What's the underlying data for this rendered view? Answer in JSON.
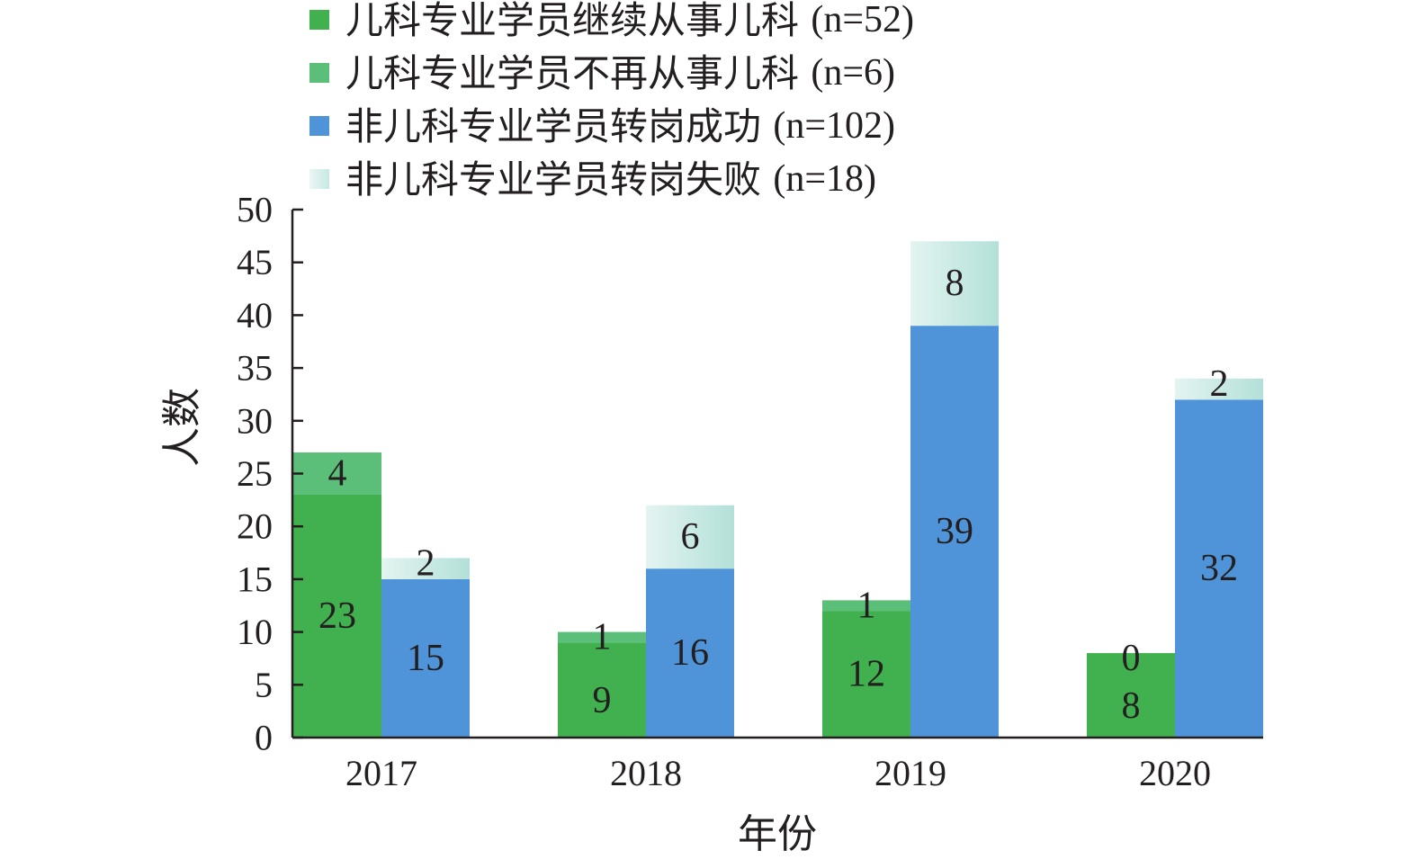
{
  "chart_data": {
    "type": "bar",
    "stacked": true,
    "grouped": true,
    "categories": [
      "2017",
      "2018",
      "2019",
      "2020"
    ],
    "xlabel": "年份",
    "ylabel": "人数",
    "ylim": [
      0,
      50
    ],
    "yticks": [
      0,
      5,
      10,
      15,
      20,
      25,
      30,
      35,
      40,
      45,
      50
    ],
    "grid": false,
    "legend_position": "top",
    "groups": [
      {
        "name": "儿科专业学员",
        "series": [
          {
            "name": "儿科专业学员继续从事儿科",
            "n_label": "(n=52)",
            "color": "#41b04e",
            "values": [
              23,
              9,
              12,
              8
            ]
          },
          {
            "name": "儿科专业学员不再从事儿科",
            "n_label": "(n=6)",
            "color": "#5bbf7a",
            "values": [
              4,
              1,
              1,
              0
            ]
          }
        ]
      },
      {
        "name": "非儿科专业学员",
        "series": [
          {
            "name": "非儿科专业学员转岗成功",
            "n_label": "(n=102)",
            "color": "#4f94d8",
            "values": [
              15,
              16,
              39,
              32
            ]
          },
          {
            "name": "非儿科专业学员转岗失败",
            "n_label": "(n=18)",
            "color": "#c6e8e3",
            "values": [
              2,
              6,
              8,
              2
            ]
          }
        ]
      }
    ]
  }
}
